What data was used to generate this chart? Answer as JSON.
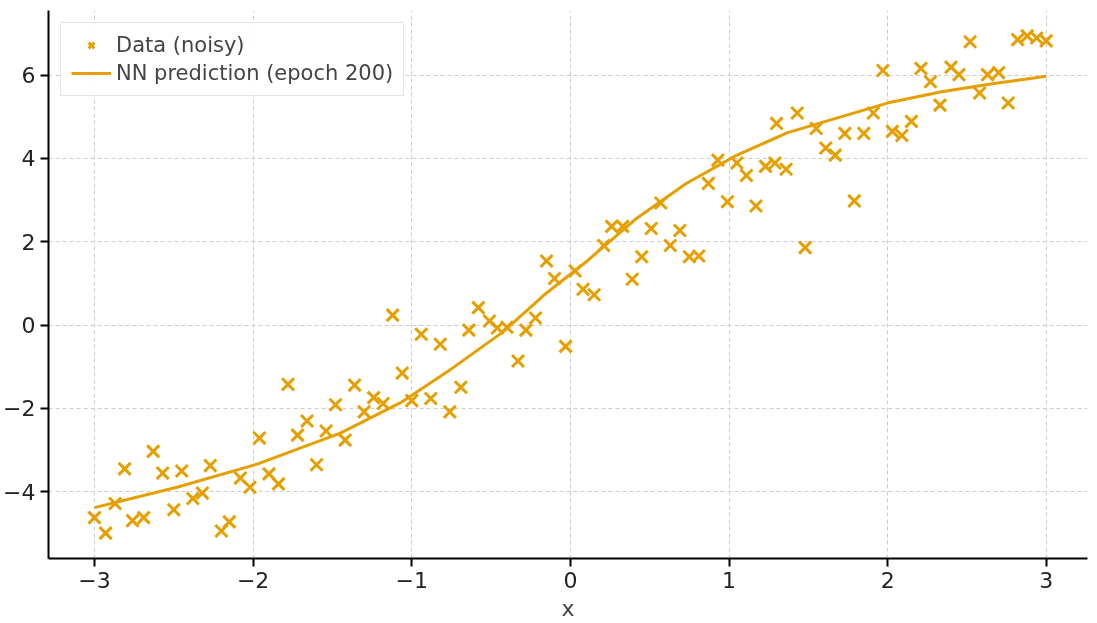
{
  "chart_data": {
    "type": "scatter",
    "xlabel": "x",
    "xlim": [
      -3.29,
      3.26
    ],
    "ylim": [
      -5.6,
      7.55
    ],
    "xticks": [
      {
        "value": -3,
        "label": "−3"
      },
      {
        "value": -2,
        "label": "−2"
      },
      {
        "value": -1,
        "label": "−1"
      },
      0,
      1,
      2,
      3
    ],
    "yticks": [
      {
        "value": -4,
        "label": "−4"
      },
      {
        "value": -2,
        "label": "−2"
      },
      0,
      2,
      4,
      6
    ],
    "grid": true,
    "legend": "top left",
    "series": [
      {
        "name": "Data (noisy)",
        "marker": "cross",
        "color": "#e69f00",
        "x": [
          -3.0,
          -2.93,
          -2.87,
          -2.81,
          -2.76,
          -2.69,
          -2.63,
          -2.57,
          -2.5,
          -2.45,
          -2.38,
          -2.32,
          -2.27,
          -2.2,
          -2.15,
          -2.08,
          -2.02,
          -1.96,
          -1.9,
          -1.84,
          -1.78,
          -1.72,
          -1.66,
          -1.6,
          -1.54,
          -1.48,
          -1.42,
          -1.36,
          -1.3,
          -1.24,
          -1.18,
          -1.12,
          -1.06,
          -1.0,
          -0.94,
          -0.88,
          -0.82,
          -0.76,
          -0.69,
          -0.64,
          -0.58,
          -0.51,
          -0.46,
          -0.4,
          -0.33,
          -0.28,
          -0.22,
          -0.15,
          -0.1,
          -0.03,
          0.03,
          0.08,
          0.15,
          0.21,
          0.26,
          0.33,
          0.39,
          0.45,
          0.51,
          0.57,
          0.63,
          0.69,
          0.75,
          0.81,
          0.87,
          0.93,
          0.99,
          1.05,
          1.11,
          1.17,
          1.23,
          1.29,
          1.3,
          1.36,
          1.43,
          1.48,
          1.55,
          1.61,
          1.67,
          1.73,
          1.79,
          1.85,
          1.91,
          1.97,
          2.03,
          2.09,
          2.15,
          2.21,
          2.27,
          2.33,
          2.4,
          2.45,
          2.52,
          2.58,
          2.63,
          2.7,
          2.76,
          2.82,
          2.88,
          2.94,
          3.0
        ],
        "values": [
          -4.62,
          -4.99,
          -4.28,
          -3.45,
          -4.69,
          -4.62,
          -3.03,
          -3.55,
          -4.43,
          -3.5,
          -4.16,
          -4.03,
          -3.37,
          -4.94,
          -4.72,
          -3.67,
          -3.89,
          -2.71,
          -3.57,
          -3.81,
          -1.42,
          -2.64,
          -2.3,
          -3.35,
          -2.54,
          -1.91,
          -2.76,
          -1.44,
          -2.08,
          -1.74,
          -1.88,
          0.24,
          -1.15,
          -1.81,
          -0.22,
          -1.76,
          -0.46,
          -2.08,
          -1.49,
          -0.12,
          0.42,
          0.1,
          -0.07,
          -0.05,
          -0.86,
          -0.12,
          0.17,
          1.54,
          1.12,
          -0.51,
          1.3,
          0.86,
          0.73,
          1.91,
          2.37,
          2.37,
          1.1,
          1.64,
          2.32,
          2.93,
          1.91,
          2.27,
          1.64,
          1.66,
          3.4,
          3.96,
          2.96,
          3.89,
          3.59,
          2.86,
          3.81,
          3.89,
          4.84,
          3.74,
          5.09,
          1.86,
          4.72,
          4.25,
          4.08,
          4.6,
          2.98,
          4.6,
          5.09,
          6.11,
          4.65,
          4.55,
          4.89,
          6.16,
          5.84,
          5.28,
          6.19,
          6.01,
          6.8,
          5.57,
          6.01,
          6.06,
          5.33,
          6.85,
          6.94,
          6.89,
          6.82
        ]
      },
      {
        "name": "NN prediction (epoch 200)",
        "type": "line",
        "line_style": "solid",
        "color": "#e69f00",
        "x": [
          -3.0,
          -2.48,
          -1.97,
          -1.45,
          -1.07,
          -0.75,
          -0.42,
          -0.17,
          0.09,
          0.41,
          0.73,
          1.05,
          1.37,
          1.7,
          2.02,
          2.34,
          2.66,
          3.0
        ],
        "values": [
          -4.38,
          -3.89,
          -3.33,
          -2.59,
          -1.86,
          -1.05,
          -0.15,
          0.71,
          1.49,
          2.54,
          3.4,
          4.08,
          4.62,
          4.99,
          5.35,
          5.6,
          5.79,
          5.97
        ]
      }
    ]
  }
}
